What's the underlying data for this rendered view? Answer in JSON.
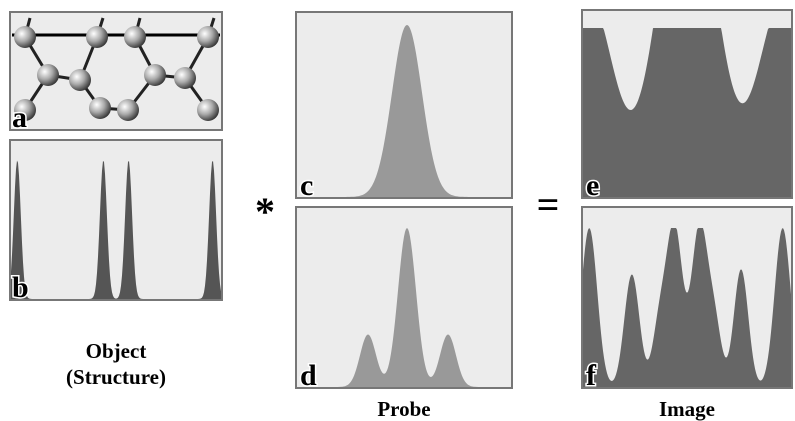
{
  "panels": [
    {
      "label": "a"
    },
    {
      "label": "b"
    },
    {
      "label": "c"
    },
    {
      "label": "d"
    },
    {
      "label": "e"
    },
    {
      "label": "f"
    }
  ],
  "object_caption": {
    "line1": "Object",
    "line2": "(Structure)"
  },
  "operators": {
    "convolve": "*",
    "equals": "="
  },
  "probe_caption": "Probe",
  "image_caption": "Image"
}
